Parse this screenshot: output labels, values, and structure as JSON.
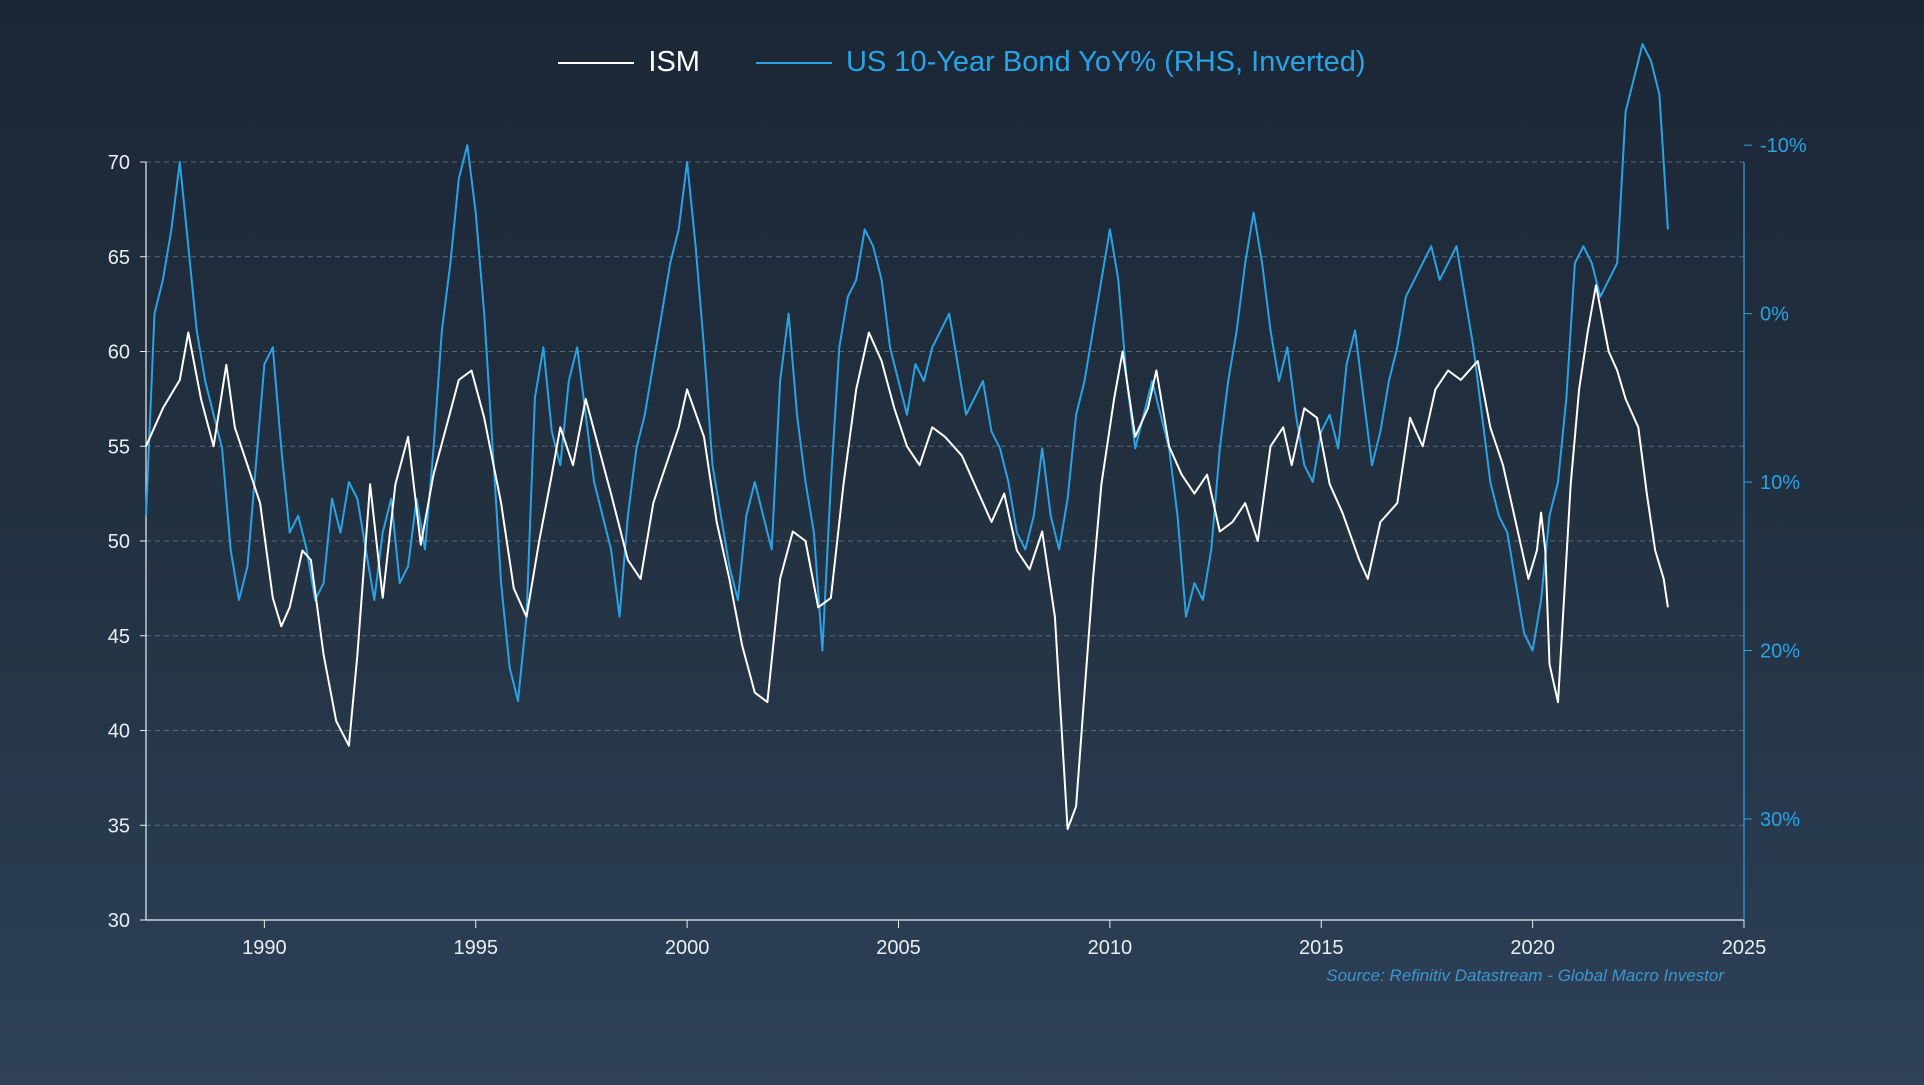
{
  "chart_data": {
    "type": "line",
    "title": "",
    "source": "Source: Refinitiv Datastream - Global Macro Investor",
    "legend_position": "top-center",
    "grid": true,
    "colors": {
      "ism": "#ffffff",
      "bond": "#29a3e6",
      "grid": "#6e7f94",
      "axis": "#e9eef4"
    },
    "x_axis": {
      "range": [
        1987.2,
        2025.0
      ],
      "ticks": [
        1990,
        1995,
        2000,
        2005,
        2010,
        2015,
        2020,
        2025
      ],
      "tick_labels": [
        "1990",
        "1995",
        "2000",
        "2005",
        "2010",
        "2015",
        "2020",
        "2025"
      ]
    },
    "y_left": {
      "range": [
        30,
        70
      ],
      "ticks": [
        30,
        35,
        40,
        45,
        50,
        55,
        60,
        65,
        70
      ],
      "tick_labels": [
        "30",
        "35",
        "40",
        "45",
        "50",
        "55",
        "60",
        "65",
        "70"
      ]
    },
    "y_right": {
      "inverted": true,
      "range": [
        -9.0,
        36.0
      ],
      "unit": "%",
      "ticks": [
        -10,
        0,
        10,
        20,
        30
      ],
      "tick_labels": [
        "-10%",
        "0%",
        "10%",
        "20%",
        "30%"
      ]
    },
    "series": [
      {
        "name": "ISM",
        "axis": "left",
        "x": [
          1987.2,
          1987.6,
          1988.0,
          1988.2,
          1988.5,
          1988.8,
          1989.1,
          1989.3,
          1989.6,
          1989.9,
          1990.2,
          1990.4,
          1990.6,
          1990.9,
          1991.1,
          1991.4,
          1991.7,
          1992.0,
          1992.2,
          1992.5,
          1992.8,
          1993.1,
          1993.4,
          1993.7,
          1994.0,
          1994.3,
          1994.6,
          1994.9,
          1995.2,
          1995.6,
          1995.9,
          1996.2,
          1996.5,
          1996.8,
          1997.0,
          1997.3,
          1997.6,
          1997.9,
          1998.2,
          1998.6,
          1998.9,
          1999.2,
          1999.5,
          1999.8,
          2000.0,
          2000.4,
          2000.7,
          2001.0,
          2001.3,
          2001.6,
          2001.9,
          2002.2,
          2002.5,
          2002.8,
          2003.1,
          2003.4,
          2003.7,
          2004.0,
          2004.3,
          2004.6,
          2004.9,
          2005.2,
          2005.5,
          2005.8,
          2006.1,
          2006.5,
          2006.8,
          2007.2,
          2007.5,
          2007.8,
          2008.1,
          2008.4,
          2008.7,
          2008.9,
          2009.0,
          2009.2,
          2009.4,
          2009.6,
          2009.8,
          2010.1,
          2010.3,
          2010.6,
          2010.9,
          2011.1,
          2011.4,
          2011.7,
          2012.0,
          2012.3,
          2012.6,
          2012.9,
          2013.2,
          2013.5,
          2013.8,
          2014.1,
          2014.3,
          2014.6,
          2014.9,
          2015.2,
          2015.5,
          2015.9,
          2016.1,
          2016.4,
          2016.8,
          2017.1,
          2017.4,
          2017.7,
          2018.0,
          2018.3,
          2018.7,
          2019.0,
          2019.3,
          2019.6,
          2019.9,
          2020.1,
          2020.2,
          2020.3,
          2020.4,
          2020.6,
          2020.9,
          2021.1,
          2021.3,
          2021.5,
          2021.8,
          2022.0,
          2022.2,
          2022.5,
          2022.7,
          2022.9,
          2023.1,
          2023.2
        ],
        "values": [
          55.0,
          57.0,
          58.5,
          61.0,
          57.5,
          55.0,
          59.3,
          56.0,
          54.0,
          52.0,
          47.0,
          45.5,
          46.5,
          49.5,
          49.0,
          44.0,
          40.5,
          39.2,
          44.0,
          53.0,
          47.0,
          53.0,
          55.5,
          49.8,
          53.5,
          56.0,
          58.5,
          59.0,
          56.5,
          52.0,
          47.5,
          46.0,
          50.0,
          53.5,
          56.0,
          54.0,
          57.5,
          55.0,
          52.5,
          49.0,
          48.0,
          52.0,
          54.0,
          56.0,
          58.0,
          55.5,
          51.0,
          48.0,
          44.5,
          42.0,
          41.5,
          48.0,
          50.5,
          50.0,
          46.5,
          47.0,
          53.0,
          58.0,
          61.0,
          59.5,
          57.0,
          55.0,
          54.0,
          56.0,
          55.5,
          54.5,
          53.0,
          51.0,
          52.5,
          49.5,
          48.5,
          50.5,
          46.0,
          38.5,
          34.8,
          36.0,
          42.0,
          48.0,
          53.0,
          57.5,
          60.0,
          55.5,
          57.0,
          59.0,
          55.0,
          53.5,
          52.5,
          53.5,
          50.5,
          51.0,
          52.0,
          50.0,
          55.0,
          56.0,
          54.0,
          57.0,
          56.5,
          53.0,
          51.5,
          49.0,
          48.0,
          51.0,
          52.0,
          56.5,
          55.0,
          58.0,
          59.0,
          58.5,
          59.5,
          56.0,
          54.0,
          51.0,
          48.0,
          49.5,
          51.5,
          49.5,
          43.5,
          41.5,
          53.0,
          58.0,
          61.0,
          63.5,
          60.0,
          59.0,
          57.5,
          56.0,
          52.5,
          49.5,
          48.0,
          46.5
        ]
      },
      {
        "name": "US 10-Year Bond YoY% (RHS, Inverted)",
        "axis": "right",
        "x": [
          1987.2,
          1987.4,
          1987.6,
          1987.8,
          1988.0,
          1988.2,
          1988.4,
          1988.6,
          1988.8,
          1989.0,
          1989.2,
          1989.4,
          1989.6,
          1989.8,
          1990.0,
          1990.2,
          1990.4,
          1990.6,
          1990.8,
          1991.0,
          1991.2,
          1991.4,
          1991.6,
          1991.8,
          1992.0,
          1992.2,
          1992.4,
          1992.6,
          1992.8,
          1993.0,
          1993.2,
          1993.4,
          1993.6,
          1993.8,
          1994.0,
          1994.2,
          1994.4,
          1994.6,
          1994.8,
          1995.0,
          1995.2,
          1995.4,
          1995.6,
          1995.8,
          1996.0,
          1996.2,
          1996.4,
          1996.6,
          1996.8,
          1997.0,
          1997.2,
          1997.4,
          1997.6,
          1997.8,
          1998.0,
          1998.2,
          1998.4,
          1998.6,
          1998.8,
          1999.0,
          1999.2,
          1999.4,
          1999.6,
          1999.8,
          2000.0,
          2000.2,
          2000.4,
          2000.6,
          2000.8,
          2001.0,
          2001.2,
          2001.4,
          2001.6,
          2001.8,
          2002.0,
          2002.2,
          2002.4,
          2002.6,
          2002.8,
          2003.0,
          2003.2,
          2003.4,
          2003.6,
          2003.8,
          2004.0,
          2004.2,
          2004.4,
          2004.6,
          2004.8,
          2005.0,
          2005.2,
          2005.4,
          2005.6,
          2005.8,
          2006.0,
          2006.2,
          2006.4,
          2006.6,
          2006.8,
          2007.0,
          2007.2,
          2007.4,
          2007.6,
          2007.8,
          2008.0,
          2008.2,
          2008.4,
          2008.6,
          2008.8,
          2009.0,
          2009.2,
          2009.4,
          2009.6,
          2009.8,
          2010.0,
          2010.2,
          2010.4,
          2010.6,
          2010.8,
          2011.0,
          2011.2,
          2011.4,
          2011.6,
          2011.8,
          2012.0,
          2012.2,
          2012.4,
          2012.6,
          2012.8,
          2013.0,
          2013.2,
          2013.4,
          2013.6,
          2013.8,
          2014.0,
          2014.2,
          2014.4,
          2014.6,
          2014.8,
          2015.0,
          2015.2,
          2015.4,
          2015.6,
          2015.8,
          2016.0,
          2016.2,
          2016.4,
          2016.6,
          2016.8,
          2017.0,
          2017.2,
          2017.4,
          2017.6,
          2017.8,
          2018.0,
          2018.2,
          2018.4,
          2018.6,
          2018.8,
          2019.0,
          2019.2,
          2019.4,
          2019.6,
          2019.8,
          2020.0,
          2020.2,
          2020.4,
          2020.6,
          2020.8,
          2021.0,
          2021.2,
          2021.4,
          2021.6,
          2021.8,
          2022.0,
          2022.2,
          2022.4,
          2022.6,
          2022.8,
          2023.0,
          2023.2
        ],
        "values": [
          12.0,
          0.0,
          -2.0,
          -5.0,
          -9.0,
          -4.0,
          1.0,
          4.0,
          6.0,
          8.0,
          14.0,
          17.0,
          15.0,
          9.0,
          3.0,
          2.0,
          8.0,
          13.0,
          12.0,
          14.0,
          17.0,
          16.0,
          11.0,
          13.0,
          10.0,
          11.0,
          14.0,
          17.0,
          13.0,
          11.0,
          16.0,
          15.0,
          11.0,
          14.0,
          8.0,
          1.0,
          -3.0,
          -8.0,
          -10.0,
          -6.0,
          0.0,
          8.0,
          16.0,
          21.0,
          23.0,
          18.0,
          5.0,
          2.0,
          7.0,
          9.0,
          4.0,
          2.0,
          6.0,
          10.0,
          12.0,
          14.0,
          18.0,
          12.0,
          8.0,
          6.0,
          3.0,
          0.0,
          -3.0,
          -5.0,
          -9.0,
          -4.0,
          2.0,
          9.0,
          12.0,
          15.0,
          17.0,
          12.0,
          10.0,
          12.0,
          14.0,
          4.0,
          0.0,
          6.0,
          10.0,
          13.0,
          20.0,
          10.0,
          2.0,
          -1.0,
          -2.0,
          -5.0,
          -4.0,
          -2.0,
          2.0,
          4.0,
          6.0,
          3.0,
          4.0,
          2.0,
          1.0,
          0.0,
          3.0,
          6.0,
          5.0,
          4.0,
          7.0,
          8.0,
          10.0,
          13.0,
          14.0,
          12.0,
          8.0,
          12.0,
          14.0,
          11.0,
          6.0,
          4.0,
          1.0,
          -2.0,
          -5.0,
          -2.0,
          4.0,
          8.0,
          6.0,
          4.0,
          6.0,
          8.0,
          12.0,
          18.0,
          16.0,
          17.0,
          14.0,
          8.0,
          4.0,
          1.0,
          -3.0,
          -6.0,
          -3.0,
          1.0,
          4.0,
          2.0,
          6.0,
          9.0,
          10.0,
          7.0,
          6.0,
          8.0,
          3.0,
          1.0,
          5.0,
          9.0,
          7.0,
          4.0,
          2.0,
          -1.0,
          -2.0,
          -3.0,
          -4.0,
          -2.0,
          -3.0,
          -4.0,
          -1.0,
          2.0,
          6.0,
          10.0,
          12.0,
          13.0,
          16.0,
          19.0,
          20.0,
          17.0,
          12.0,
          10.0,
          5.0,
          -3.0,
          -4.0,
          -3.0,
          -1.0,
          -2.0,
          -3.0,
          -12.0,
          -14.0,
          -16.0,
          -15.0,
          -13.0,
          -5.0
        ]
      }
    ]
  },
  "legend": [
    {
      "label": "ISM",
      "color": "#ffffff"
    },
    {
      "label": "US 10-Year Bond YoY% (RHS, Inverted)",
      "color": "#29a3e6"
    }
  ]
}
